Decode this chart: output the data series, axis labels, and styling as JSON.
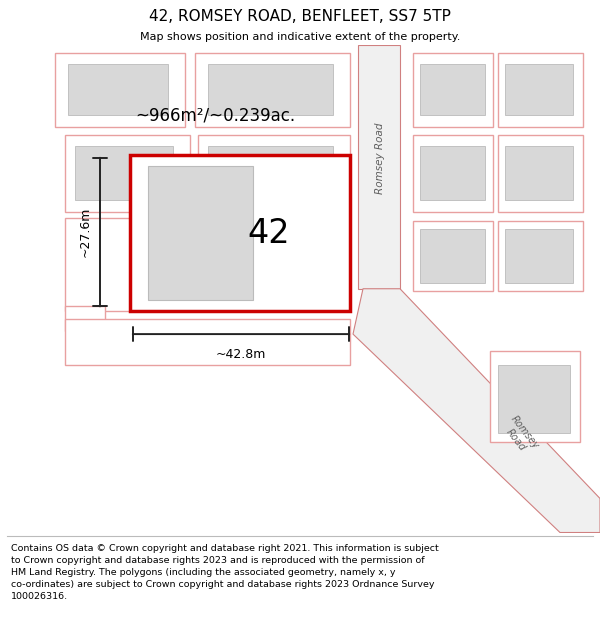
{
  "title": "42, ROMSEY ROAD, BENFLEET, SS7 5TP",
  "subtitle": "Map shows position and indicative extent of the property.",
  "footer": "Contains OS data © Crown copyright and database right 2021. This information is subject\nto Crown copyright and database rights 2023 and is reproduced with the permission of\nHM Land Registry. The polygons (including the associated geometry, namely x, y\nco-ordinates) are subject to Crown copyright and database rights 2023 Ordnance Survey\n100026316.",
  "area_label": "~966m²/~0.239ac.",
  "width_label": "~42.8m",
  "height_label": "~27.6m",
  "plot_number": "42",
  "bg_color": "#ffffff",
  "map_bg_color": "#ffffff",
  "plot_outline_color": "#cc0000",
  "building_color": "#d8d8d8",
  "building_outline": "#bbbbbb",
  "ghost_plot_edge": "#e8a0a0",
  "ghost_plot_fill": "#ffffff",
  "ghost_building_fill": "#d8d8d8",
  "road_line_color": "#d08080",
  "road_fill_color": "#e8e8e8",
  "road_text_color": "#606060",
  "dim_line_color": "#222222",
  "title_fontsize": 11,
  "subtitle_fontsize": 8,
  "footer_fontsize": 6.8
}
